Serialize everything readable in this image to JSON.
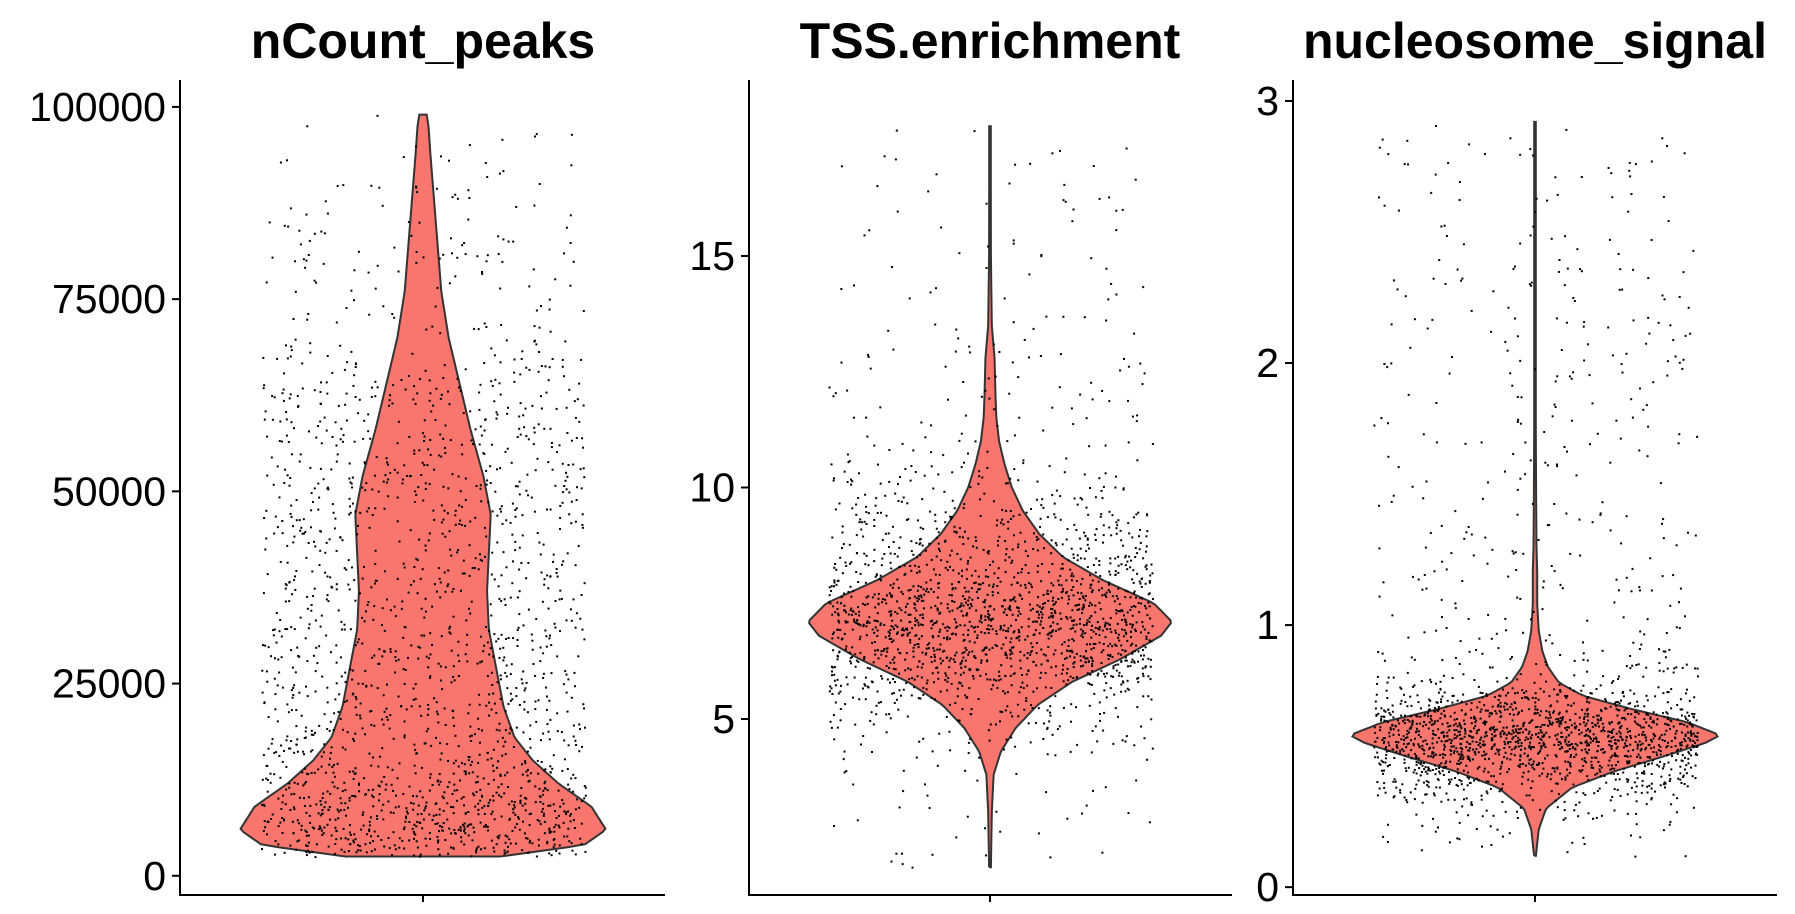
{
  "chart_data": [
    {
      "type": "violin",
      "title": "nCount_peaks",
      "xlabel": "",
      "ylabel": "",
      "ylim": [
        -2500,
        103500
      ],
      "y_ticks": [
        0,
        25000,
        50000,
        75000,
        100000
      ],
      "y_tick_labels": [
        "0",
        "25000",
        "50000",
        "75000",
        "100000"
      ],
      "fill_color": "#F8766D",
      "point_color": "#000000",
      "n_points": 1900,
      "density": [
        {
          "y": 2500,
          "w": 0.42
        },
        {
          "y": 4000,
          "w": 0.88
        },
        {
          "y": 6000,
          "w": 1.0
        },
        {
          "y": 9000,
          "w": 0.92
        },
        {
          "y": 12000,
          "w": 0.74
        },
        {
          "y": 15000,
          "w": 0.6
        },
        {
          "y": 18000,
          "w": 0.5
        },
        {
          "y": 22000,
          "w": 0.44
        },
        {
          "y": 27000,
          "w": 0.4
        },
        {
          "y": 32000,
          "w": 0.36
        },
        {
          "y": 37000,
          "w": 0.35
        },
        {
          "y": 42000,
          "w": 0.36
        },
        {
          "y": 47000,
          "w": 0.37
        },
        {
          "y": 52000,
          "w": 0.33
        },
        {
          "y": 58000,
          "w": 0.26
        },
        {
          "y": 64000,
          "w": 0.2
        },
        {
          "y": 70000,
          "w": 0.14
        },
        {
          "y": 76000,
          "w": 0.1
        },
        {
          "y": 82000,
          "w": 0.08
        },
        {
          "y": 88000,
          "w": 0.06
        },
        {
          "y": 94000,
          "w": 0.04
        },
        {
          "y": 97500,
          "w": 0.03
        },
        {
          "y": 99000,
          "w": 0.02
        }
      ]
    },
    {
      "type": "violin",
      "title": "TSS.enrichment",
      "xlabel": "",
      "ylabel": "",
      "ylim": [
        1.2,
        18.8
      ],
      "y_ticks": [
        5,
        10,
        15
      ],
      "y_tick_labels": [
        "5",
        "10",
        "15"
      ],
      "fill_color": "#F8766D",
      "point_color": "#000000",
      "n_points": 1900,
      "density": [
        {
          "y": 1.8,
          "w": 0.005
        },
        {
          "y": 3.0,
          "w": 0.01
        },
        {
          "y": 3.8,
          "w": 0.02
        },
        {
          "y": 4.3,
          "w": 0.06
        },
        {
          "y": 4.8,
          "w": 0.14
        },
        {
          "y": 5.3,
          "w": 0.26
        },
        {
          "y": 5.8,
          "w": 0.45
        },
        {
          "y": 6.3,
          "w": 0.72
        },
        {
          "y": 6.8,
          "w": 0.94
        },
        {
          "y": 7.1,
          "w": 1.0
        },
        {
          "y": 7.5,
          "w": 0.9
        },
        {
          "y": 8.0,
          "w": 0.62
        },
        {
          "y": 8.5,
          "w": 0.4
        },
        {
          "y": 9.0,
          "w": 0.27
        },
        {
          "y": 9.5,
          "w": 0.18
        },
        {
          "y": 10.0,
          "w": 0.12
        },
        {
          "y": 10.5,
          "w": 0.08
        },
        {
          "y": 11.0,
          "w": 0.05
        },
        {
          "y": 11.5,
          "w": 0.035
        },
        {
          "y": 12.0,
          "w": 0.03
        },
        {
          "y": 12.8,
          "w": 0.025
        },
        {
          "y": 13.5,
          "w": 0.01
        },
        {
          "y": 15.0,
          "w": 0.005
        },
        {
          "y": 17.8,
          "w": 0.004
        }
      ]
    },
    {
      "type": "violin",
      "title": "nucleosome_signal",
      "xlabel": "",
      "ylabel": "",
      "ylim": [
        -0.03,
        3.08
      ],
      "y_ticks": [
        0,
        1,
        2,
        3
      ],
      "y_tick_labels": [
        "0",
        "1",
        "2",
        "3"
      ],
      "fill_color": "#F8766D",
      "point_color": "#000000",
      "n_points": 1900,
      "density": [
        {
          "y": 0.12,
          "w": 0.005
        },
        {
          "y": 0.22,
          "w": 0.02
        },
        {
          "y": 0.3,
          "w": 0.06
        },
        {
          "y": 0.38,
          "w": 0.2
        },
        {
          "y": 0.44,
          "w": 0.42
        },
        {
          "y": 0.5,
          "w": 0.7
        },
        {
          "y": 0.55,
          "w": 0.92
        },
        {
          "y": 0.58,
          "w": 1.0
        },
        {
          "y": 0.63,
          "w": 0.82
        },
        {
          "y": 0.68,
          "w": 0.52
        },
        {
          "y": 0.73,
          "w": 0.26
        },
        {
          "y": 0.78,
          "w": 0.13
        },
        {
          "y": 0.84,
          "w": 0.07
        },
        {
          "y": 0.9,
          "w": 0.04
        },
        {
          "y": 0.98,
          "w": 0.02
        },
        {
          "y": 1.08,
          "w": 0.012
        },
        {
          "y": 1.2,
          "w": 0.012
        },
        {
          "y": 1.3,
          "w": 0.008
        },
        {
          "y": 1.5,
          "w": 0.006
        },
        {
          "y": 1.8,
          "w": 0.004
        },
        {
          "y": 2.92,
          "w": 0.003
        }
      ]
    }
  ]
}
